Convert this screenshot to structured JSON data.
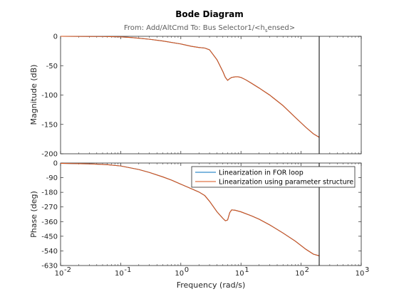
{
  "chart_data": {
    "type": "line",
    "title": "Bode Diagram",
    "subtitle": "From: Add/AltCmd  To: Bus Selector1/<h_sensed>",
    "xlabel": "Frequency  (rad/s)",
    "x_scale": "log",
    "xlim": [
      0.01,
      1000
    ],
    "x_tick_labels": [
      "10",
      "10",
      "10",
      "10",
      "10",
      "10"
    ],
    "x_tick_exponents": [
      "-2",
      "-1",
      "0",
      "1",
      "2",
      "3"
    ],
    "vertical_marker_x": 200,
    "grid": false,
    "legend_placement": "top-right of phase panel",
    "colors": {
      "for_loop": "#0072bd",
      "param_struct": "#d95319",
      "marker": "#000000"
    },
    "panels": [
      {
        "name": "magnitude",
        "ylabel": "Magnitude (dB)",
        "ylim": [
          -200,
          0
        ],
        "yticks": [
          0,
          -50,
          -100,
          -150,
          -200
        ],
        "series": [
          {
            "name": "Linearization in FOR loop",
            "x": [
              0.01,
              0.05,
              0.1,
              0.15,
              0.3,
              0.5,
              1,
              1.5,
              2,
              2.5,
              3,
              4,
              5,
              5.5,
              6,
              6.5,
              7,
              8,
              9,
              10,
              12,
              15,
              20,
              30,
              50,
              80,
              120,
              160,
              200
            ],
            "y": [
              0,
              -0.3,
              -1,
              -2,
              -5,
              -8,
              -13,
              -17,
              -19,
              -20,
              -23,
              -40,
              -60,
              -70,
              -75,
              -72,
              -70,
              -69,
              -69,
              -70,
              -74,
              -80,
              -88,
              -100,
              -118,
              -138,
              -155,
              -166,
              -172
            ]
          },
          {
            "name": "Linearization using parameter structure",
            "x": [
              0.01,
              0.05,
              0.1,
              0.15,
              0.3,
              0.5,
              1,
              1.5,
              2,
              2.5,
              3,
              4,
              5,
              5.5,
              6,
              6.5,
              7,
              8,
              9,
              10,
              12,
              15,
              20,
              30,
              50,
              80,
              120,
              160,
              200
            ],
            "y": [
              0,
              -0.3,
              -1,
              -2,
              -5,
              -8,
              -13,
              -17,
              -19,
              -20,
              -23,
              -40,
              -60,
              -70,
              -75,
              -72,
              -70,
              -69,
              -69,
              -70,
              -74,
              -80,
              -88,
              -100,
              -118,
              -138,
              -155,
              -166,
              -172
            ]
          }
        ]
      },
      {
        "name": "phase",
        "ylabel": "Phase (deg)",
        "ylim": [
          -630,
          0
        ],
        "yticks": [
          0,
          -90,
          -180,
          -270,
          -360,
          -450,
          -540,
          -630
        ],
        "series": [
          {
            "name": "Linearization in FOR loop",
            "x": [
              0.01,
              0.03,
              0.06,
              0.1,
              0.2,
              0.3,
              0.5,
              0.7,
              1,
              1.5,
              2,
              2.5,
              3,
              4,
              5,
              5.5,
              6,
              6.5,
              7,
              8,
              10,
              15,
              20,
              30,
              50,
              80,
              120,
              160,
              200
            ],
            "y": [
              -2,
              -5,
              -10,
              -18,
              -40,
              -58,
              -85,
              -105,
              -130,
              -158,
              -178,
              -200,
              -235,
              -300,
              -340,
              -355,
              -350,
              -305,
              -288,
              -290,
              -300,
              -325,
              -345,
              -380,
              -430,
              -480,
              -530,
              -560,
              -570
            ]
          },
          {
            "name": "Linearization using parameter structure",
            "x": [
              0.01,
              0.03,
              0.06,
              0.1,
              0.2,
              0.3,
              0.5,
              0.7,
              1,
              1.5,
              2,
              2.5,
              3,
              4,
              5,
              5.5,
              6,
              6.5,
              7,
              8,
              10,
              15,
              20,
              30,
              50,
              80,
              120,
              160,
              200
            ],
            "y": [
              -2,
              -5,
              -10,
              -18,
              -40,
              -58,
              -85,
              -105,
              -130,
              -158,
              -178,
              -200,
              -235,
              -300,
              -340,
              -355,
              -350,
              -305,
              -288,
              -290,
              -300,
              -325,
              -345,
              -380,
              -430,
              -480,
              -530,
              -560,
              -570
            ]
          }
        ]
      }
    ]
  }
}
